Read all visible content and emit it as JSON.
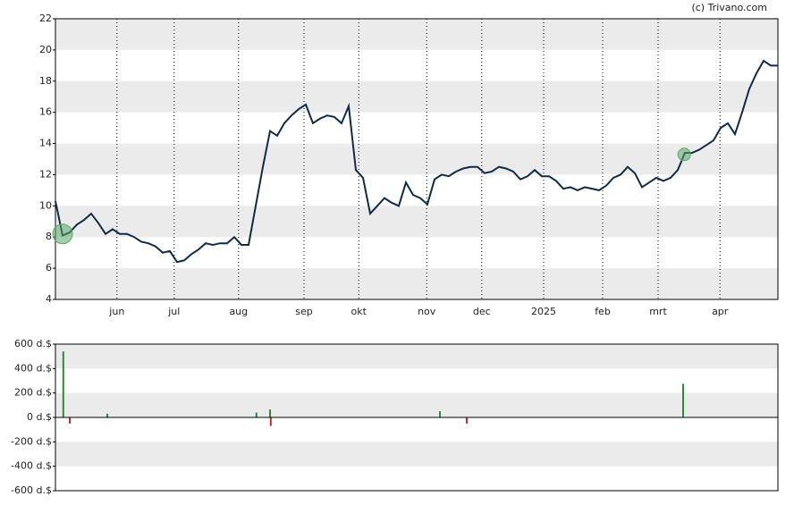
{
  "chart_data": [
    {
      "type": "line",
      "source": "(c) Trivano.com",
      "color": "#0f2b48",
      "band_color": "#ebebeb",
      "xlim": [
        0,
        101
      ],
      "ylim": [
        4,
        22
      ],
      "yticks": [
        4,
        6,
        8,
        10,
        12,
        14,
        16,
        18,
        20,
        22
      ],
      "xticks": [
        {
          "value": 8.6,
          "label": "jun"
        },
        {
          "value": 16.6,
          "label": "jul"
        },
        {
          "value": 25.6,
          "label": "aug"
        },
        {
          "value": 34.75,
          "label": "sep"
        },
        {
          "value": 42.4,
          "label": "okt"
        },
        {
          "value": 51.9,
          "label": "nov"
        },
        {
          "value": 59.6,
          "label": "dec"
        },
        {
          "value": 68.25,
          "label": "2025"
        },
        {
          "value": 76.5,
          "label": "feb"
        },
        {
          "value": 84.25,
          "label": "mrt"
        },
        {
          "value": 92.9,
          "label": "apr"
        }
      ],
      "values": [
        10.3,
        8.1,
        8.3,
        8.8,
        9.1,
        9.5,
        8.9,
        8.2,
        8.5,
        8.2,
        8.2,
        8.0,
        7.7,
        7.6,
        7.4,
        7.0,
        7.1,
        6.4,
        6.5,
        6.9,
        7.2,
        7.6,
        7.5,
        7.6,
        7.6,
        8.0,
        7.5,
        7.5,
        10.0,
        12.5,
        14.8,
        14.5,
        15.3,
        15.8,
        16.2,
        16.5,
        15.3,
        15.6,
        15.8,
        15.7,
        15.3,
        16.4,
        12.3,
        11.8,
        9.5,
        10.0,
        10.5,
        10.2,
        10.0,
        11.5,
        10.7,
        10.5,
        10.1,
        11.7,
        12.0,
        11.9,
        12.2,
        12.4,
        12.5,
        12.5,
        12.1,
        12.2,
        12.5,
        12.4,
        12.2,
        11.7,
        11.9,
        12.3,
        11.9,
        11.9,
        11.6,
        11.1,
        11.2,
        11.0,
        11.2,
        11.1,
        11.0,
        11.3,
        11.8,
        12.0,
        12.5,
        12.1,
        11.2,
        11.5,
        11.8,
        11.6,
        11.8,
        12.3,
        13.4,
        13.4,
        13.6,
        13.9,
        14.2,
        15.0,
        15.3,
        14.6,
        16.0,
        17.5,
        18.5,
        19.3,
        19.0,
        19.0
      ],
      "markers": {
        "x": [
          1,
          87.9
        ],
        "values": [
          8.2,
          13.3
        ],
        "color": "#5aa867"
      }
    },
    {
      "type": "bar",
      "band_color": "#ebebeb",
      "positive_color": "#2e8b3a",
      "negative_color": "#d62030",
      "xlim": [
        0,
        101
      ],
      "ylim": [
        -600,
        600
      ],
      "yticks": [
        {
          "value": -600,
          "label": "-600 d.$"
        },
        {
          "value": -400,
          "label": "-400 d.$"
        },
        {
          "value": -200,
          "label": "-200 d.$"
        },
        {
          "value": 0,
          "label": "0 d.$"
        },
        {
          "value": 200,
          "label": "200 d.$"
        },
        {
          "value": 400,
          "label": "400 d.$"
        },
        {
          "value": 600,
          "label": "600 d.$"
        }
      ],
      "x": [
        1.1,
        2,
        7.25,
        28.1,
        30,
        30.1,
        53.75,
        57.5,
        87.75
      ],
      "values": [
        540,
        -50,
        30,
        40,
        65,
        -70,
        50,
        -50,
        275
      ]
    }
  ]
}
